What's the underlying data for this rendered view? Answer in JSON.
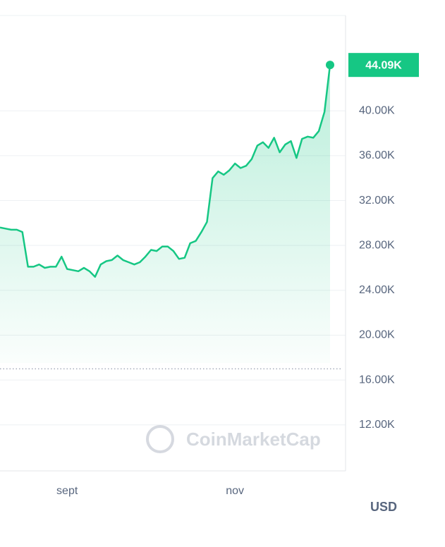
{
  "chart_data": {
    "type": "line",
    "series": [
      {
        "name": "price",
        "color": "#16c784",
        "values": [
          29600,
          29500,
          29400,
          29400,
          29200,
          26100,
          26100,
          26300,
          26000,
          26100,
          26100,
          27000,
          25900,
          25800,
          25700,
          26000,
          25700,
          25200,
          26300,
          26600,
          26700,
          27100,
          26700,
          26500,
          26300,
          26500,
          27000,
          27600,
          27500,
          27900,
          27900,
          27500,
          26800,
          26900,
          28200,
          28400,
          29200,
          30100,
          34000,
          34600,
          34300,
          34700,
          35300,
          34900,
          35100,
          35700,
          36900,
          37200,
          36700,
          37600,
          36300,
          37000,
          37300,
          35800,
          37500,
          37700,
          37600,
          38200,
          39900,
          44090
        ]
      }
    ],
    "current_price": {
      "value": 44090,
      "label": "44.09K"
    },
    "reference_line": 17000,
    "xlim": [
      0,
      59
    ],
    "xticks": [
      {
        "value": 12,
        "label": "sept"
      },
      {
        "value": 42,
        "label": "nov"
      }
    ],
    "ylim": [
      7900,
      48500
    ],
    "yticks": [
      {
        "value": 12000,
        "label": "12.00K"
      },
      {
        "value": 16000,
        "label": "16.00K"
      },
      {
        "value": 20000,
        "label": "20.00K"
      },
      {
        "value": 24000,
        "label": "24.00K"
      },
      {
        "value": 28000,
        "label": "28.00K"
      },
      {
        "value": 32000,
        "label": "32.00K"
      },
      {
        "value": 36000,
        "label": "36.00K"
      },
      {
        "value": 40000,
        "label": "40.00K"
      }
    ],
    "grid": true,
    "currency": "USD",
    "watermark": "CoinMarketCap"
  }
}
